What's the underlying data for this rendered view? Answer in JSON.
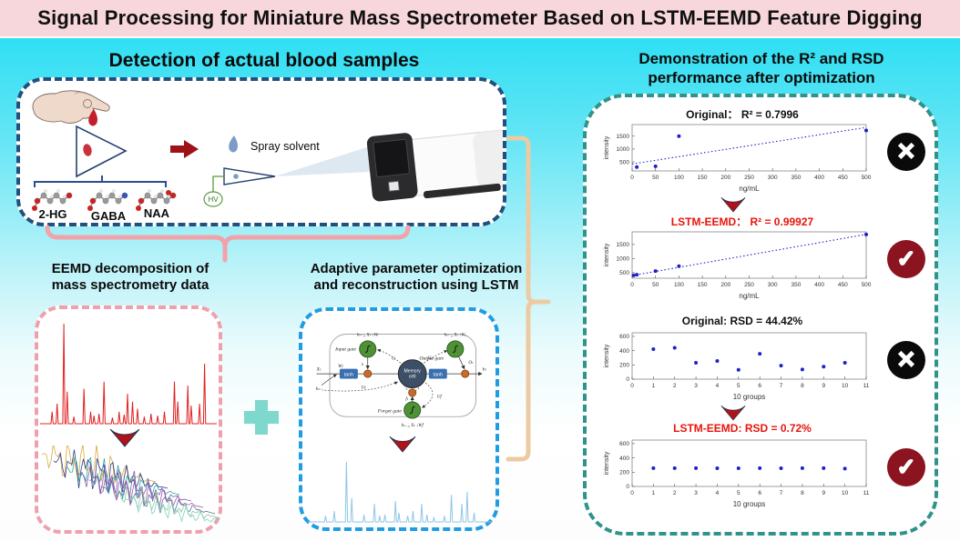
{
  "title_bar": {
    "text": "Signal Processing for Miniature Mass Spectrometer Based on LSTM-EEMD Feature Digging"
  },
  "sections": {
    "blood": {
      "heading": "Detection of actual blood samples",
      "spray_label": "Spray solvent",
      "hv_label": "HV",
      "molecules": [
        "2-HG",
        "GABA",
        "NAA"
      ]
    },
    "eemd": {
      "heading_line1": "EEMD decomposition of",
      "heading_line2": "mass spectrometry data"
    },
    "lstm": {
      "heading_line1": "Adaptive parameter optimization",
      "heading_line2": "and reconstruction using LSTM",
      "diagram": {
        "input_gate": "Input gate",
        "output_gate": "Output gate",
        "forget_gate": "Forget gate",
        "memory_cell_line1": "Memory",
        "memory_cell_line2": "cell",
        "tanh_left": "tanh",
        "tanh_right": "tanh",
        "x_in": "Xₜ",
        "h_out": "hₜ",
        "h_prev": "hₜ₋₁",
        "w_top_left": "hₜ₋₁, Xₜ ↓Wᵢ",
        "w_top_right": "hₜ₋₁, Xₜ ↓Wₒ",
        "w_bottom": "hₜ₋₁, Xₜ ↓Wf",
        "u_i": "Uᵢ",
        "u_o": "Uₒ",
        "u_c": "Uc",
        "u_f": "Uf",
        "i_t": "iₜ",
        "o_t": "Oₜ",
        "f_t": "fₜ",
        "w_c": "Wc"
      }
    },
    "results": {
      "heading_line1": "Demonstration of the R² and RSD",
      "heading_line2": "performance after optimization"
    }
  },
  "chart_data": [
    {
      "type": "scatter",
      "title_prefix": "Original：",
      "title_value": "R² = 0.7996",
      "title_color": "#111111",
      "xlabel": "ng/mL",
      "ylabel": "intensity",
      "xlim": [
        0,
        500
      ],
      "ylim": [
        150,
        1950
      ],
      "xticks": [
        0,
        50,
        100,
        150,
        200,
        250,
        300,
        350,
        400,
        450,
        500
      ],
      "yticks": [
        500,
        1000,
        1500
      ],
      "points": [
        [
          10,
          300
        ],
        [
          50,
          330
        ],
        [
          100,
          1500
        ],
        [
          500,
          1720
        ]
      ],
      "fit_line": {
        "x1": 0,
        "y1": 420,
        "x2": 500,
        "y2": 1840
      },
      "verdict": "cross",
      "legend": "none",
      "grid": false
    },
    {
      "type": "scatter",
      "title_prefix": "LSTM-EEMD：",
      "title_value": "R² = 0.99927",
      "title_color": "#E8150D",
      "xlabel": "ng/mL",
      "ylabel": "intensity",
      "xlim": [
        0,
        500
      ],
      "ylim": [
        300,
        1950
      ],
      "xticks": [
        0,
        50,
        100,
        150,
        200,
        250,
        300,
        350,
        400,
        450,
        500
      ],
      "yticks": [
        500,
        1000,
        1500
      ],
      "points": [
        [
          3,
          400
        ],
        [
          10,
          425
        ],
        [
          50,
          555
        ],
        [
          100,
          730
        ],
        [
          500,
          1855
        ]
      ],
      "fit_line": {
        "x1": 0,
        "y1": 395,
        "x2": 500,
        "y2": 1860
      },
      "verdict": "check",
      "legend": "none",
      "grid": false
    },
    {
      "type": "scatter",
      "title_prefix": "Original:",
      "title_value": "RSD = 44.42%",
      "title_color": "#111111",
      "xlabel": "10 groups",
      "ylabel": "intensity",
      "xlim": [
        0,
        11
      ],
      "ylim": [
        0,
        650
      ],
      "xticks": [
        0,
        1,
        2,
        3,
        4,
        5,
        6,
        7,
        8,
        9,
        10,
        11
      ],
      "yticks": [
        0,
        200,
        400,
        600
      ],
      "points": [
        [
          1,
          420
        ],
        [
          2,
          440
        ],
        [
          3,
          230
        ],
        [
          4,
          255
        ],
        [
          5,
          130
        ],
        [
          6,
          355
        ],
        [
          7,
          190
        ],
        [
          8,
          135
        ],
        [
          9,
          175
        ],
        [
          10,
          230
        ]
      ],
      "verdict": "cross",
      "legend": "none",
      "grid": false
    },
    {
      "type": "scatter",
      "title_prefix": "LSTM-EEMD:",
      "title_value": "RSD = 0.72%",
      "title_color": "#E8150D",
      "xlabel": "10 groups",
      "ylabel": "intensity",
      "xlim": [
        0,
        11
      ],
      "ylim": [
        0,
        650
      ],
      "xticks": [
        0,
        1,
        2,
        3,
        4,
        5,
        6,
        7,
        8,
        9,
        10,
        11
      ],
      "yticks": [
        0,
        200,
        400,
        600
      ],
      "points": [
        [
          1,
          257
        ],
        [
          2,
          257
        ],
        [
          3,
          257
        ],
        [
          4,
          255
        ],
        [
          5,
          255
        ],
        [
          6,
          257
        ],
        [
          7,
          255
        ],
        [
          8,
          257
        ],
        [
          9,
          256
        ],
        [
          10,
          250
        ]
      ],
      "verdict": "check",
      "legend": "none",
      "grid": false
    }
  ],
  "spectra": {
    "red_peaks": [
      [
        0.05,
        0.12
      ],
      [
        0.08,
        0.2
      ],
      [
        0.12,
        1.0
      ],
      [
        0.14,
        0.32
      ],
      [
        0.18,
        0.07
      ],
      [
        0.24,
        0.35
      ],
      [
        0.28,
        0.12
      ],
      [
        0.3,
        0.08
      ],
      [
        0.33,
        0.1
      ],
      [
        0.36,
        0.42
      ],
      [
        0.41,
        0.06
      ],
      [
        0.45,
        0.12
      ],
      [
        0.48,
        0.09
      ],
      [
        0.5,
        0.3
      ],
      [
        0.53,
        0.22
      ],
      [
        0.56,
        0.15
      ],
      [
        0.6,
        0.07
      ],
      [
        0.64,
        0.1
      ],
      [
        0.68,
        0.08
      ],
      [
        0.72,
        0.12
      ],
      [
        0.78,
        0.42
      ],
      [
        0.8,
        0.22
      ],
      [
        0.86,
        0.38
      ],
      [
        0.88,
        0.18
      ],
      [
        0.93,
        0.2
      ],
      [
        0.96,
        0.6
      ]
    ],
    "blue_peaks": [
      [
        0.08,
        0.1
      ],
      [
        0.13,
        0.18
      ],
      [
        0.2,
        1.0
      ],
      [
        0.23,
        0.4
      ],
      [
        0.3,
        0.12
      ],
      [
        0.36,
        0.3
      ],
      [
        0.39,
        0.1
      ],
      [
        0.42,
        0.12
      ],
      [
        0.48,
        0.35
      ],
      [
        0.5,
        0.15
      ],
      [
        0.55,
        0.1
      ],
      [
        0.58,
        0.18
      ],
      [
        0.63,
        0.3
      ],
      [
        0.66,
        0.12
      ],
      [
        0.7,
        0.08
      ],
      [
        0.76,
        0.1
      ],
      [
        0.8,
        0.45
      ],
      [
        0.86,
        0.3
      ],
      [
        0.89,
        0.5
      ],
      [
        0.93,
        0.15
      ]
    ],
    "waterfall_colors": [
      "#D8A93C",
      "#2E3D90",
      "#2FA8A3",
      "#7C5FB6",
      "#A855A8",
      "#5E6FA5",
      "#93C693",
      "#7BCFC4"
    ]
  },
  "colors": {
    "titlebar_bg": "#F8D7DC",
    "bg_top": "#2FDFF3",
    "panel_blue_border": "#20517E",
    "panel_teal_border": "#2E9389",
    "box_pink_border": "#EFA0AC",
    "box_blue_border": "#1E9DE4",
    "bracket_salmon": "#F1A3A9",
    "bracket_tan": "#EDCBA2",
    "plus": "#7ED8CC",
    "cross_bg": "#0A0A0A",
    "check_bg": "#8C1320",
    "point_blue": "#2020C8",
    "red_title": "#E8150D",
    "spectrum_red": "#E02020",
    "spectrum_blue": "#8EC6E8",
    "arrow_red": "#B01218"
  }
}
